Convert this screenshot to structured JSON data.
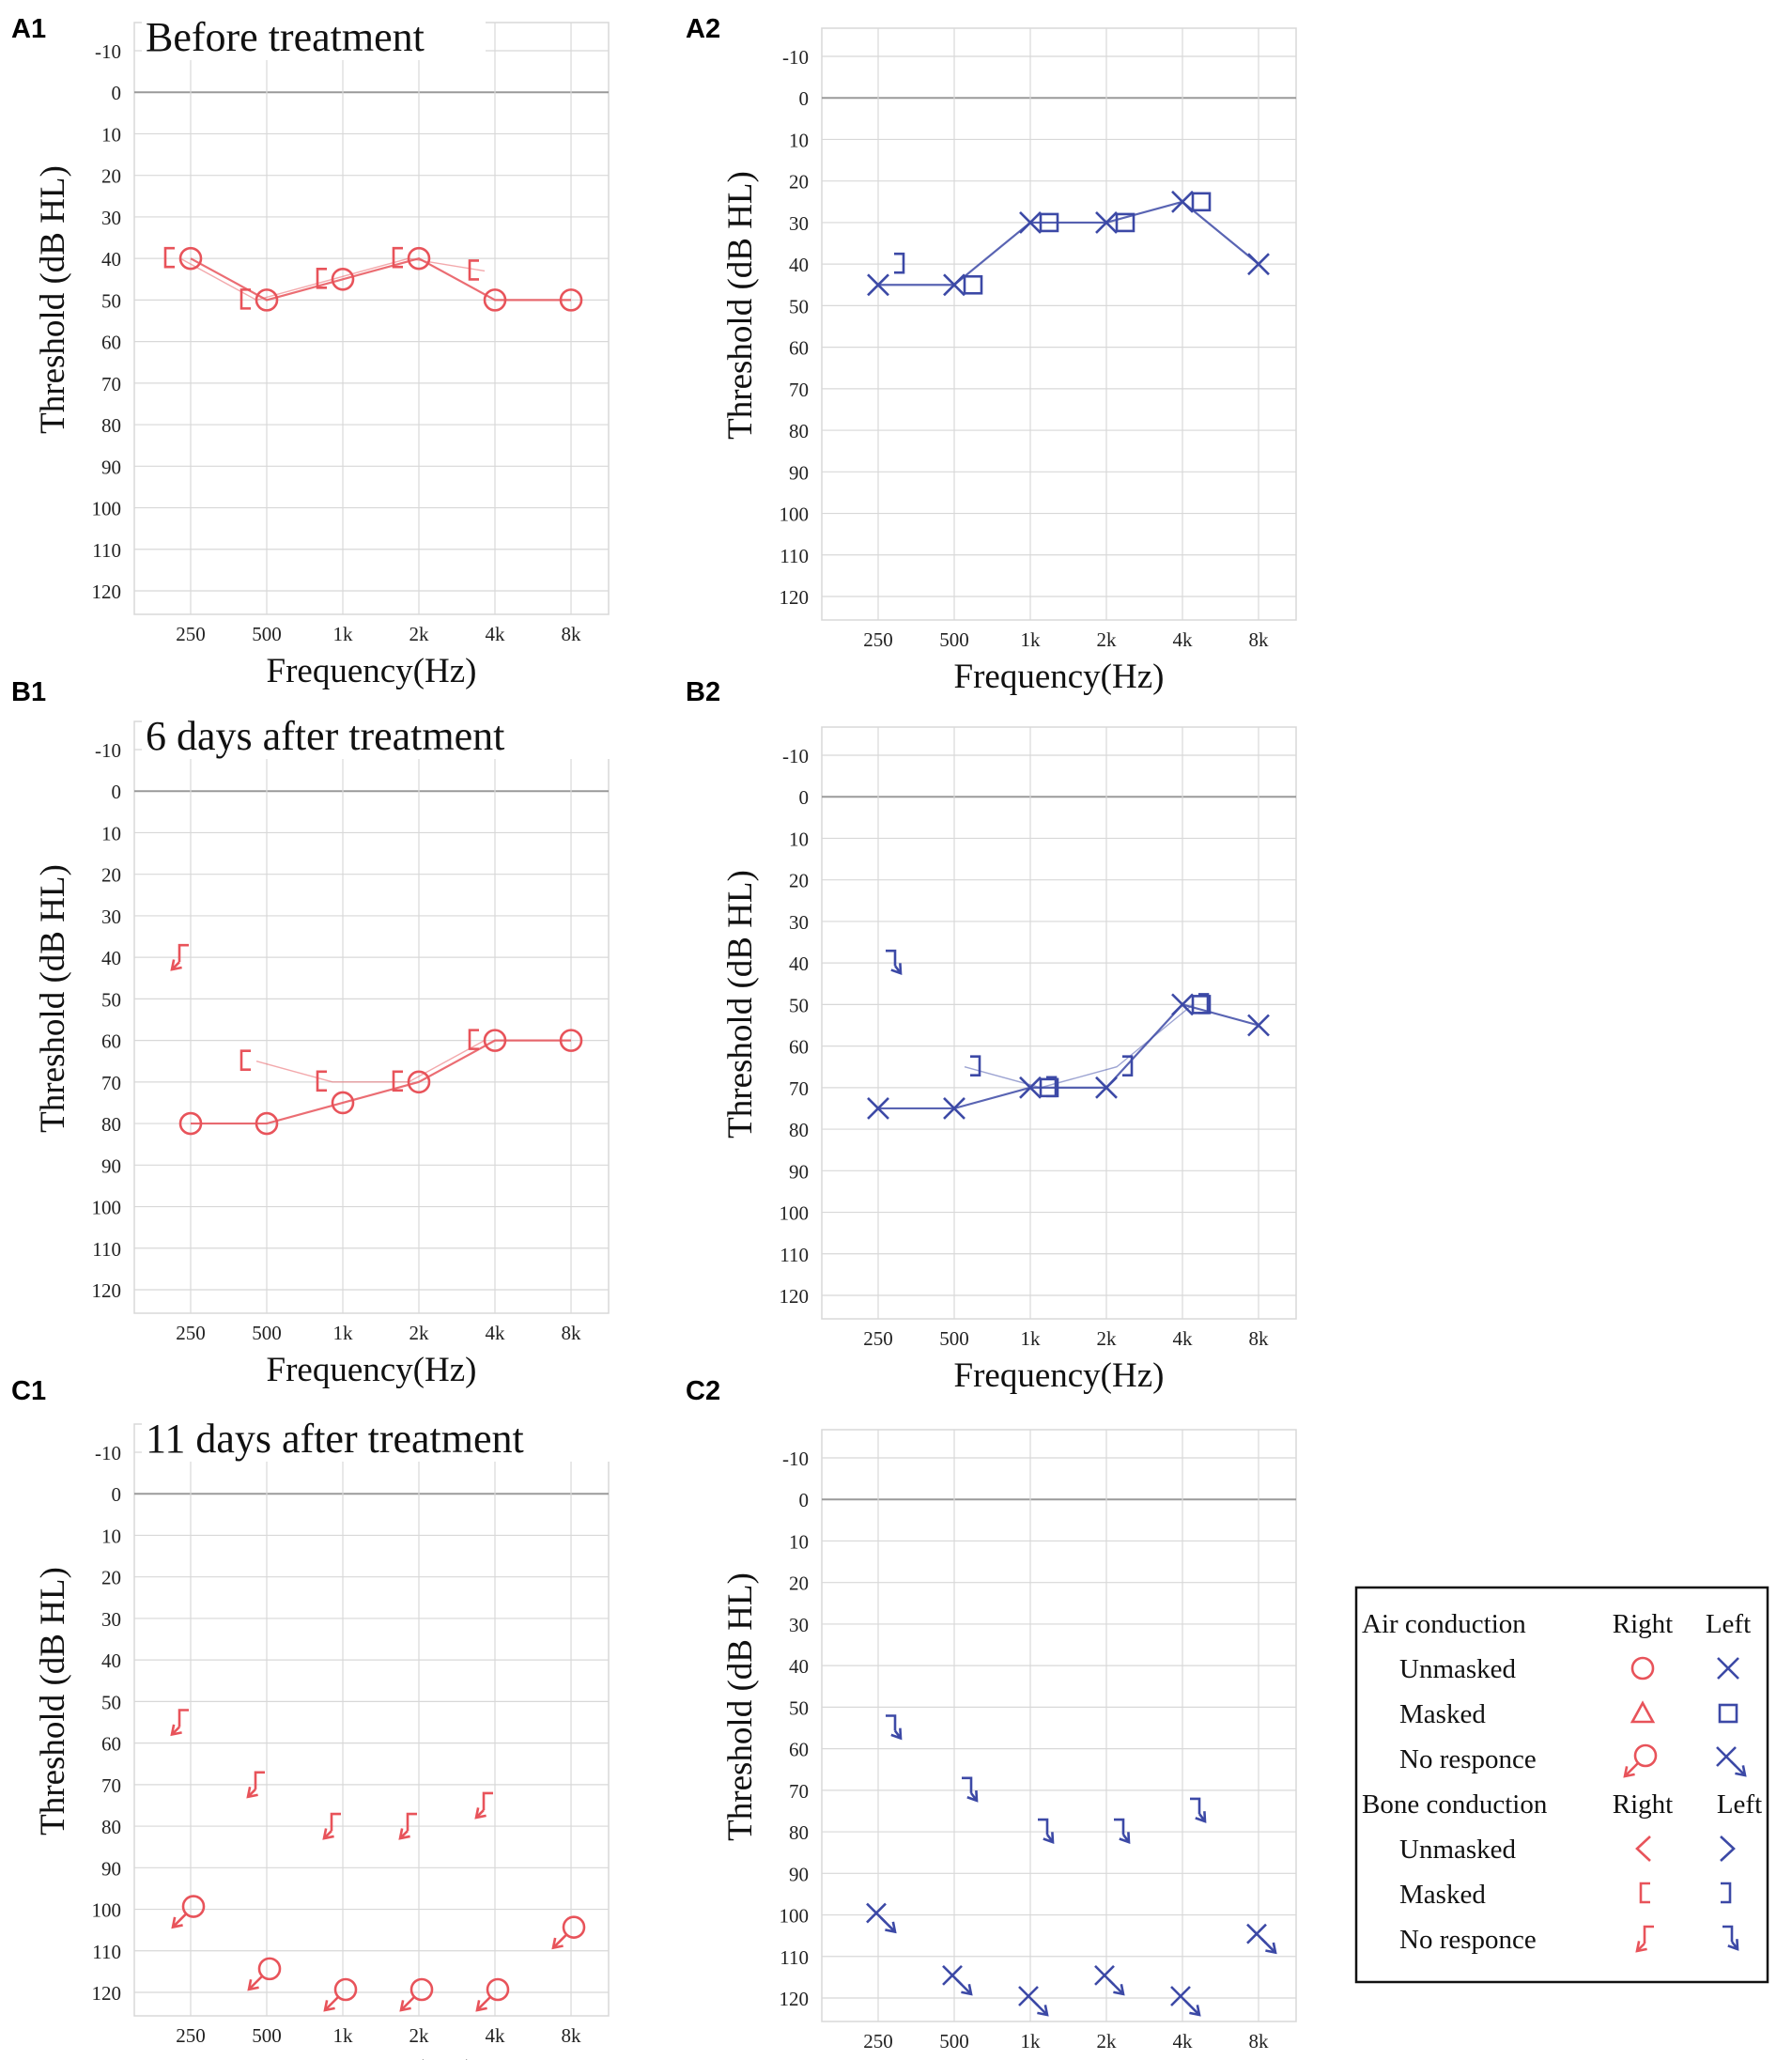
{
  "colors": {
    "right": "#e8535a",
    "left": "#3c49a6",
    "grid": "#d8d8d8",
    "zero": "#9a9a9a"
  },
  "common": {
    "x_categories": [
      "250",
      "500",
      "1k",
      "2k",
      "4k",
      "8k"
    ],
    "y_ticks": [
      "-10",
      "0",
      "10",
      "20",
      "30",
      "40",
      "50",
      "60",
      "70",
      "80",
      "90",
      "100",
      "110",
      "120"
    ],
    "xlabel": "Frequency(Hz)",
    "ylabel": "Threshold (dB HL)"
  },
  "chart_data": [
    {
      "id": "A1",
      "label": "A1",
      "type": "line",
      "ear": "right",
      "title": "Before treatment",
      "ylim": [
        -10,
        120
      ],
      "xlabel": "Frequency(Hz)",
      "ylabel": "Threshold (dB HL)",
      "series": [
        {
          "name": "Air conduction unmasked (right)",
          "symbol": "circle",
          "connect": true,
          "points": [
            [
              0,
              40
            ],
            [
              1,
              50
            ],
            [
              2,
              45
            ],
            [
              3,
              40
            ],
            [
              4,
              50
            ],
            [
              5,
              50
            ]
          ]
        },
        {
          "name": "Bone conduction masked (right)",
          "symbol": "bracket-right",
          "connect": true,
          "faint": true,
          "points": [
            [
              0,
              40
            ],
            [
              1,
              50
            ],
            [
              2,
              45
            ],
            [
              3,
              40
            ],
            [
              4,
              43
            ]
          ]
        }
      ]
    },
    {
      "id": "A2",
      "label": "A2",
      "type": "line",
      "ear": "left",
      "title": "",
      "ylim": [
        -10,
        120
      ],
      "xlabel": "Frequency(Hz)",
      "ylabel": "Threshold (dB HL)",
      "series": [
        {
          "name": "Air conduction unmasked (left)",
          "symbol": "x",
          "connect": true,
          "points": [
            [
              0,
              45
            ],
            [
              1,
              45
            ],
            [
              2,
              30
            ],
            [
              3,
              30
            ],
            [
              4,
              25
            ],
            [
              5,
              40
            ]
          ]
        },
        {
          "name": "Air conduction masked (left)",
          "symbol": "square",
          "connect": false,
          "points": [
            [
              1,
              45
            ],
            [
              2,
              30
            ],
            [
              3,
              30
            ],
            [
              4,
              25
            ]
          ]
        },
        {
          "name": "Bone conduction masked (left)",
          "symbol": "bracket-left",
          "connect": false,
          "points": [
            [
              0,
              40
            ]
          ]
        }
      ]
    },
    {
      "id": "B1",
      "label": "B1",
      "type": "line",
      "ear": "right",
      "title": "6 days after treatment",
      "ylim": [
        -10,
        120
      ],
      "xlabel": "Frequency(Hz)",
      "ylabel": "Threshold (dB HL)",
      "series": [
        {
          "name": "Air conduction unmasked (right)",
          "symbol": "circle",
          "connect": true,
          "points": [
            [
              0,
              80
            ],
            [
              1,
              80
            ],
            [
              2,
              75
            ],
            [
              3,
              70
            ],
            [
              4,
              60
            ],
            [
              5,
              60
            ]
          ]
        },
        {
          "name": "Bone conduction masked (right)",
          "symbol": "bracket-right",
          "connect": true,
          "faint": true,
          "points": [
            [
              1,
              65
            ],
            [
              2,
              70
            ],
            [
              3,
              70
            ],
            [
              4,
              60
            ]
          ]
        },
        {
          "name": "Bone conduction no response (right)",
          "symbol": "bracket-right-nr",
          "connect": false,
          "points": [
            [
              0,
              40
            ]
          ]
        }
      ]
    },
    {
      "id": "B2",
      "label": "B2",
      "type": "line",
      "ear": "left",
      "title": "",
      "ylim": [
        -10,
        120
      ],
      "xlabel": "Frequency(Hz)",
      "ylabel": "Threshold (dB HL)",
      "series": [
        {
          "name": "Air conduction unmasked (left)",
          "symbol": "x",
          "connect": true,
          "points": [
            [
              0,
              75
            ],
            [
              1,
              75
            ],
            [
              2,
              70
            ],
            [
              3,
              70
            ],
            [
              4,
              50
            ],
            [
              5,
              55
            ]
          ]
        },
        {
          "name": "Air conduction masked (left)",
          "symbol": "square",
          "connect": false,
          "points": [
            [
              2,
              70
            ],
            [
              4,
              50
            ]
          ]
        },
        {
          "name": "Bone conduction masked (left)",
          "symbol": "bracket-left",
          "connect": true,
          "faint": true,
          "points": [
            [
              1,
              65
            ],
            [
              2,
              70
            ],
            [
              3,
              65
            ],
            [
              4,
              50
            ]
          ]
        },
        {
          "name": "Bone conduction no response (left)",
          "symbol": "bracket-left-nr",
          "connect": false,
          "points": [
            [
              0,
              40
            ]
          ]
        }
      ]
    },
    {
      "id": "C1",
      "label": "C1",
      "type": "scatter",
      "ear": "right",
      "title": "11 days after treatment",
      "ylim": [
        -10,
        120
      ],
      "xlabel": "Frequency(Hz)",
      "ylabel": "Threshold (dB HL)",
      "series": [
        {
          "name": "Air conduction no response (right)",
          "symbol": "circle-nr",
          "connect": false,
          "points": [
            [
              0,
              100
            ],
            [
              1,
              115
            ],
            [
              2,
              120
            ],
            [
              3,
              120
            ],
            [
              4,
              120
            ],
            [
              5,
              105
            ]
          ]
        },
        {
          "name": "Bone conduction no response (right)",
          "symbol": "bracket-right-nr",
          "connect": false,
          "points": [
            [
              0,
              55
            ],
            [
              1,
              70
            ],
            [
              2,
              80
            ],
            [
              3,
              80
            ],
            [
              4,
              75
            ]
          ]
        }
      ]
    },
    {
      "id": "C2",
      "label": "C2",
      "type": "scatter",
      "ear": "left",
      "title": "",
      "ylim": [
        -10,
        120
      ],
      "xlabel": "Frequency(Hz)",
      "ylabel": "Threshold (dB HL)",
      "series": [
        {
          "name": "Air conduction no response (left)",
          "symbol": "x-nr",
          "connect": false,
          "points": [
            [
              0,
              100
            ],
            [
              1,
              115
            ],
            [
              2,
              120
            ],
            [
              3,
              115
            ],
            [
              4,
              120
            ],
            [
              5,
              105
            ]
          ]
        },
        {
          "name": "Bone conduction no response (left)",
          "symbol": "bracket-left-nr",
          "connect": false,
          "points": [
            [
              0,
              55
            ],
            [
              1,
              70
            ],
            [
              2,
              80
            ],
            [
              3,
              80
            ],
            [
              4,
              75
            ]
          ]
        }
      ]
    }
  ],
  "legend": {
    "header_right": "Right",
    "header_left": "Left",
    "sections": [
      {
        "title": "Air conduction",
        "rows": [
          {
            "label": "Unmasked",
            "right": "circle",
            "left": "x"
          },
          {
            "label": "Masked",
            "right": "triangle",
            "left": "square"
          },
          {
            "label": "No responce",
            "right": "circle-nr",
            "left": "x-nr"
          }
        ]
      },
      {
        "title": "Bone conduction",
        "rows": [
          {
            "label": "Unmasked",
            "right": "angle-right",
            "left": "angle-left"
          },
          {
            "label": "Masked",
            "right": "bracket-right",
            "left": "bracket-left"
          },
          {
            "label": "No responce",
            "right": "bracket-right-nr",
            "left": "bracket-left-nr"
          }
        ]
      }
    ]
  }
}
